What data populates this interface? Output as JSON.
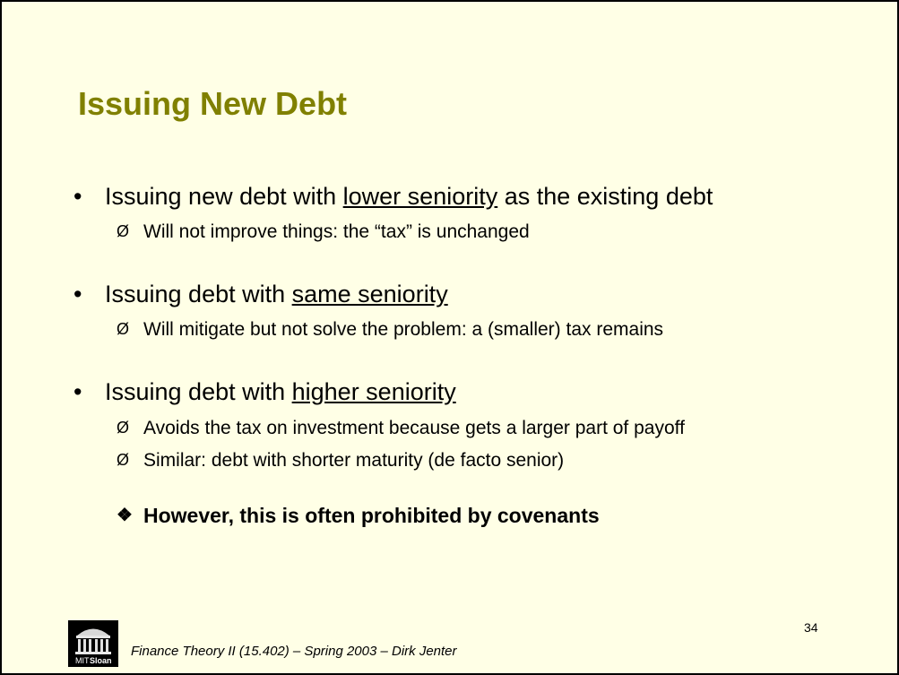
{
  "slide": {
    "title": "Issuing New Debt",
    "bullets": [
      {
        "marker": "•",
        "prefix": "Issuing new debt with ",
        "emphasis": "lower seniority",
        "suffix": " as the existing debt",
        "subs": [
          {
            "marker": "Ø",
            "text": "Will not improve things: the “tax” is unchanged"
          }
        ]
      },
      {
        "marker": "•",
        "prefix": "Issuing debt with ",
        "emphasis": "same seniority",
        "suffix": "",
        "subs": [
          {
            "marker": "Ø",
            "text": "Will mitigate but not solve the problem: a (smaller) tax remains"
          }
        ]
      },
      {
        "marker": "•",
        "prefix": "Issuing debt with ",
        "emphasis": "higher seniority",
        "suffix": "",
        "subs": [
          {
            "marker": "Ø",
            "text": "Avoids the tax on investment because gets a larger part of payoff"
          },
          {
            "marker": "Ø",
            "text": "Similar: debt with shorter maturity (de facto senior)"
          }
        ]
      }
    ],
    "note": {
      "marker": "❖",
      "text": "However, this is often prohibited by covenants"
    },
    "page_number": "34",
    "footer": "Finance Theory II (15.402) – Spring 2003 – Dirk Jenter",
    "logo": {
      "icon": "mit-sloan-dome-icon",
      "text_mit": "MIT",
      "text_sloan": "Sloan"
    },
    "colors": {
      "background": "#ffffe6",
      "title": "#808000",
      "text": "#000000"
    }
  }
}
